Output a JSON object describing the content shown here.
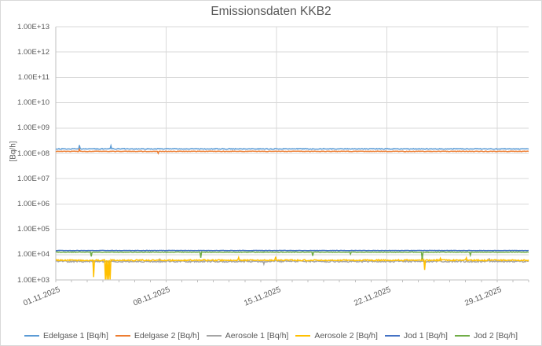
{
  "chart_data": {
    "type": "line",
    "title": "Emissionsdaten KKB2",
    "ylabel": "[Bq/h]",
    "xlabel": "",
    "y_scale": "log",
    "ylim": [
      1000,
      10000000000000
    ],
    "y_ticks": [
      "1.00E+13",
      "1.00E+12",
      "1.00E+11",
      "1.00E+10",
      "1.00E+09",
      "1.00E+08",
      "1.00E+07",
      "1.00E+06",
      "1.00E+05",
      "1.00E+04",
      "1.00E+03"
    ],
    "x_range_days": 30,
    "x_ticks": [
      {
        "day": 0,
        "label": "01.11.2025"
      },
      {
        "day": 7,
        "label": "08.11.2025"
      },
      {
        "day": 14,
        "label": "15.11.2025"
      },
      {
        "day": 21,
        "label": "22.11.2025"
      },
      {
        "day": 28,
        "label": "29.11.2025"
      }
    ],
    "grid": true,
    "legend_position": "bottom",
    "grid_color": "#D9D9D9",
    "axis_color": "#BFBFBF",
    "text_color": "#595959",
    "series": [
      {
        "name": "Edelgase 1 [Bq/h]",
        "color": "#5B9BD5",
        "base": 150000000,
        "noise": 0.015,
        "seed": 11,
        "spikes": [
          {
            "day": 1.5,
            "value": 210000000
          },
          {
            "day": 3.5,
            "value": 200000000
          }
        ]
      },
      {
        "name": "Edelgase 2 [Bq/h]",
        "color": "#ED7D31",
        "base": 120000000,
        "noise": 0.01,
        "seed": 22,
        "spikes": [
          {
            "day": 1.5,
            "value": 145000000
          },
          {
            "day": 6.5,
            "value": 100000000
          }
        ]
      },
      {
        "name": "Aerosole 1 [Bq/h]",
        "color": "#A5A5A5",
        "base": 5400,
        "noise": 0.03,
        "seed": 33,
        "spikes": [
          {
            "day": 6.6,
            "value": 7000
          },
          {
            "day": 13.2,
            "value": 4200
          },
          {
            "day": 27.5,
            "value": 7200
          }
        ]
      },
      {
        "name": "Aerosole 2 [Bq/h]",
        "color": "#FFC000",
        "base": 6000,
        "noise": 0.025,
        "seed": 44,
        "spikes": [
          {
            "day": 2.4,
            "value": 1300
          },
          {
            "day": 3.3,
            "value": 1050,
            "width": 0.35
          },
          {
            "day": 11.6,
            "value": 7800
          },
          {
            "day": 13.95,
            "value": 8200
          },
          {
            "day": 23.25,
            "value": 9000
          },
          {
            "day": 23.4,
            "value": 2500
          },
          {
            "day": 24.4,
            "value": 7200
          },
          {
            "day": 26.05,
            "value": 7500
          }
        ]
      },
      {
        "name": "Jod 1 [Bq/h]",
        "color": "#4472C4",
        "base": 14500,
        "noise": 0.007,
        "seed": 55,
        "spikes": []
      },
      {
        "name": "Jod 2 [Bq/h]",
        "color": "#70AD47",
        "base": 12500,
        "noise": 0.01,
        "seed": 66,
        "spikes": [
          {
            "day": 2.25,
            "value": 8500
          },
          {
            "day": 9.2,
            "value": 7500
          },
          {
            "day": 16.3,
            "value": 9000
          },
          {
            "day": 18.7,
            "value": 10500
          },
          {
            "day": 23.27,
            "value": 6500
          },
          {
            "day": 26.3,
            "value": 9500
          }
        ]
      }
    ]
  }
}
